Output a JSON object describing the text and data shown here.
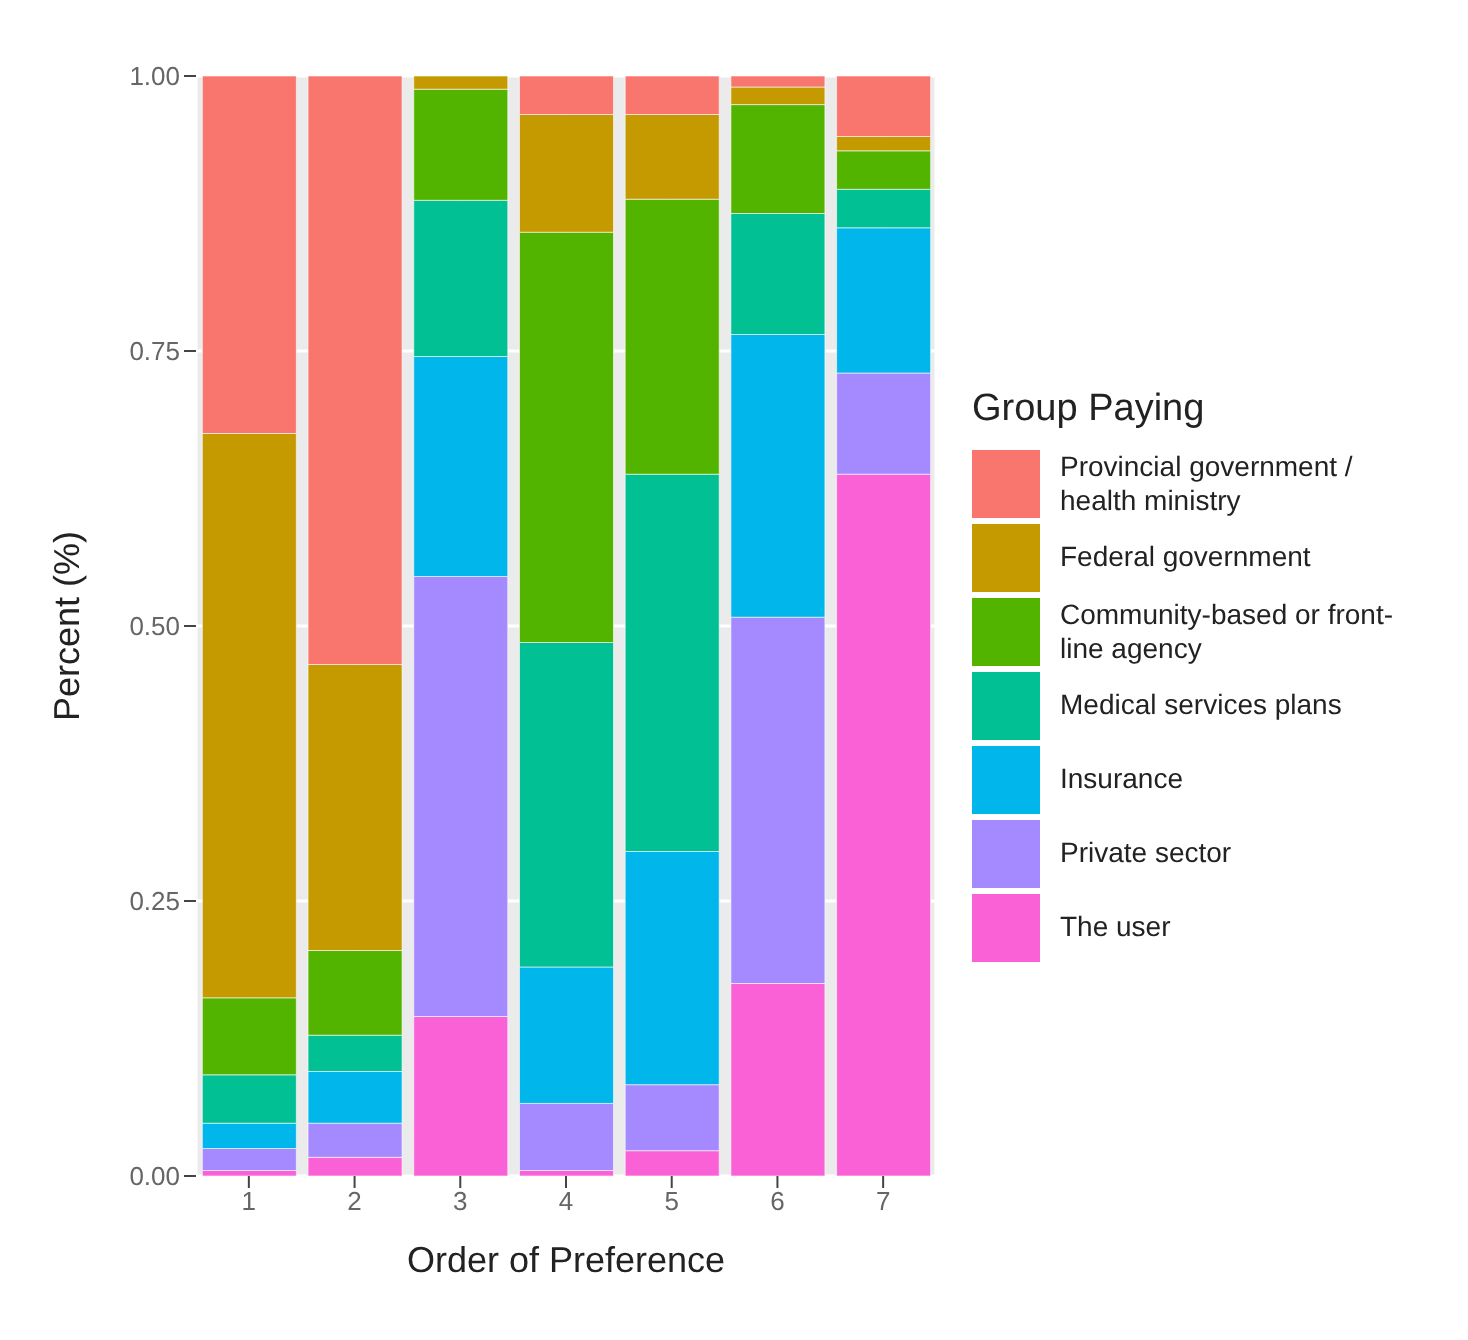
{
  "chart_data": {
    "type": "bar",
    "stacked": true,
    "xlabel": "Order of Preference",
    "ylabel": "Percent (%)",
    "legend_title": "Group Paying",
    "legend": "right",
    "grid": true,
    "categories": [
      "1",
      "2",
      "3",
      "4",
      "5",
      "6",
      "7"
    ],
    "ylim": [
      0,
      1
    ],
    "yticks": [
      {
        "value": 0,
        "label": "0.00"
      },
      {
        "value": 0.25,
        "label": "0.25"
      },
      {
        "value": 0.5,
        "label": "0.50"
      },
      {
        "value": 0.75,
        "label": "0.75"
      },
      {
        "value": 1,
        "label": "1.00"
      }
    ],
    "series": [
      {
        "name": "The user",
        "color": "#fb61d7",
        "values": [
          0.005,
          0.017,
          0.145,
          0.005,
          0.023,
          0.175,
          0.638
        ]
      },
      {
        "name": "Private sector",
        "color": "#a58aff",
        "values": [
          0.02,
          0.031,
          0.4,
          0.061,
          0.06,
          0.333,
          0.092
        ]
      },
      {
        "name": "Insurance",
        "color": "#00b6eb",
        "values": [
          0.023,
          0.047,
          0.2,
          0.124,
          0.212,
          0.257,
          0.132
        ]
      },
      {
        "name": "Medical services plans",
        "color": "#00c094",
        "values": [
          0.044,
          0.033,
          0.142,
          0.295,
          0.343,
          0.11,
          0.035
        ]
      },
      {
        "name": "Community-based or front-line agency",
        "color": "#53b400",
        "values": [
          0.07,
          0.077,
          0.101,
          0.373,
          0.25,
          0.099,
          0.035
        ]
      },
      {
        "name": "Federal government",
        "color": "#c49a00",
        "values": [
          0.513,
          0.26,
          0.012,
          0.107,
          0.077,
          0.016,
          0.013
        ]
      },
      {
        "name": "Provincial government / health ministry",
        "color": "#f8766d",
        "values": [
          0.325,
          0.535,
          0,
          0.035,
          0.035,
          0.01,
          0.055
        ]
      }
    ]
  }
}
